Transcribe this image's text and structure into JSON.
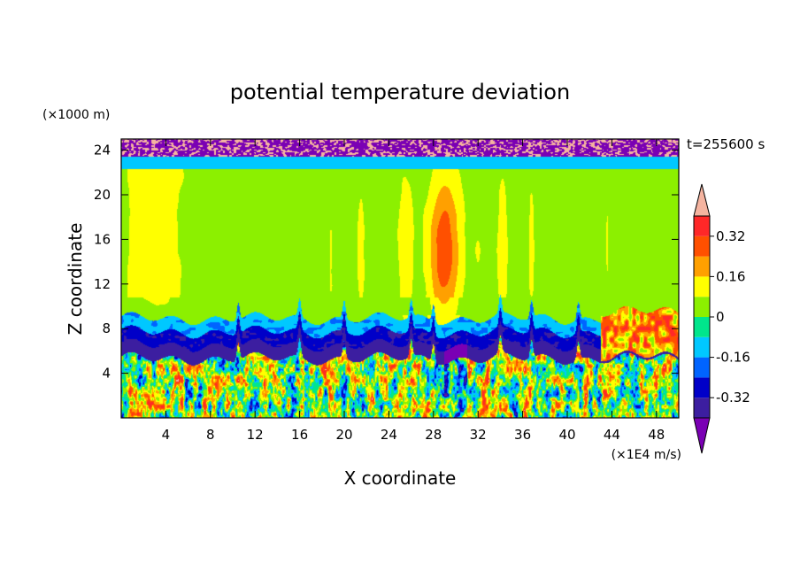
{
  "chart_data": {
    "type": "heatmap",
    "title": "potential temperature deviation",
    "xlabel": "X coordinate",
    "ylabel": "Z coordinate",
    "x_units": "(×1E4 m/s)",
    "y_units": "(×1000 m)",
    "time_label": "t=255600 s",
    "xlim": [
      0,
      50
    ],
    "ylim": [
      0,
      25
    ],
    "x_ticks": [
      4,
      8,
      12,
      16,
      20,
      24,
      28,
      32,
      36,
      40,
      44,
      48
    ],
    "y_ticks": [
      4,
      8,
      12,
      16,
      20,
      24
    ],
    "colorbar": {
      "levels": [
        -0.4,
        -0.32,
        -0.24,
        -0.16,
        -0.08,
        0,
        0.08,
        0.16,
        0.24,
        0.32,
        0.4
      ],
      "labels": [
        "0.32",
        "0.16",
        "0",
        "-0.16",
        "-0.32"
      ],
      "label_values": [
        0.32,
        0.16,
        0,
        -0.16,
        -0.32
      ],
      "colors": [
        "#7a00b4",
        "#3c1ea0",
        "#0000c8",
        "#0064ff",
        "#00c8ff",
        "#00e68c",
        "#8cf000",
        "#ffff00",
        "#ffa000",
        "#ff5000",
        "#ff2828",
        "#f5b4a0"
      ]
    },
    "features": {
      "boundary_layer_top_km": 6.5,
      "warm_plume_center_x": 29,
      "upper_left_warm_region_x": [
        0,
        6
      ],
      "background_value": 0.04
    },
    "colors": {
      "background": "#ffffff",
      "axis": "#000000"
    }
  }
}
